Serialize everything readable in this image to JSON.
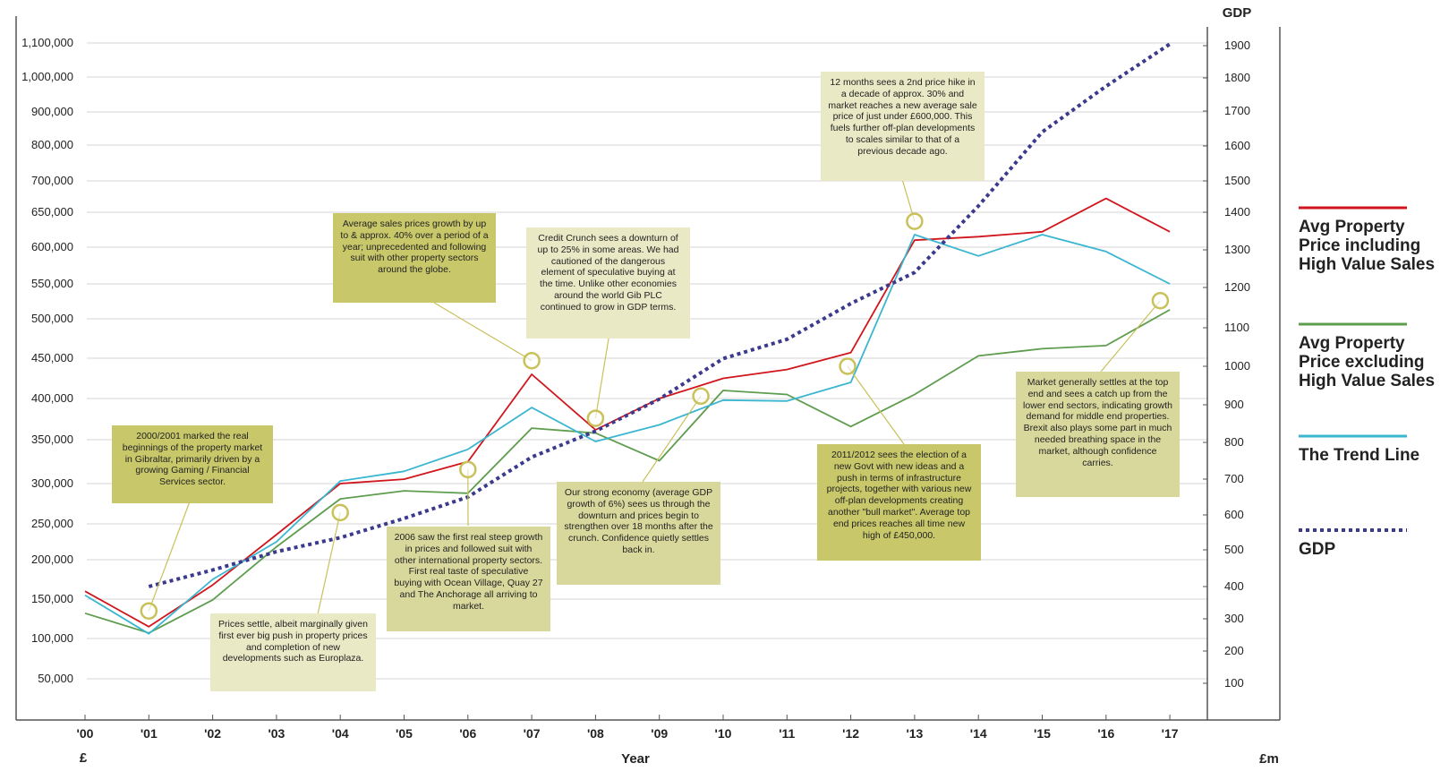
{
  "chart_data": {
    "type": "line",
    "xlabel": "Year",
    "ylabel_left": "£",
    "ylabel_right_top": "GDP",
    "ylabel_right_bottom": "£m",
    "x_categories": [
      "'00",
      "'01",
      "'02",
      "'03",
      "'04",
      "'05",
      "'06",
      "'07",
      "'08",
      "'09",
      "'10",
      "'11",
      "'12",
      "'13",
      "'14",
      "'15",
      "'16",
      "'17"
    ],
    "left_ticks": [
      "50,000",
      "100,000",
      "150,000",
      "200,000",
      "250,000",
      "300,000",
      "350,000",
      "400,000",
      "450,000",
      "500,000",
      "550,000",
      "600,000",
      "650,000",
      "700,000",
      "800,000",
      "900,000",
      "1,000,000",
      "1,100,000"
    ],
    "right_ticks": [
      "100",
      "200",
      "300",
      "400",
      "500",
      "600",
      "700",
      "800",
      "900",
      "1000",
      "1100",
      "1200",
      "1300",
      "1400",
      "1500",
      "1600",
      "1700",
      "1800",
      "1900"
    ],
    "series": [
      {
        "name": "Avg Property Price including High Value Sales",
        "axis": "left",
        "color": "#d0161c",
        "points": [
          [
            0,
            160000
          ],
          [
            1,
            115000
          ],
          [
            2,
            168000
          ],
          [
            3,
            235000
          ],
          [
            4,
            300000
          ],
          [
            5,
            305000
          ],
          [
            6,
            325000
          ],
          [
            7,
            430000
          ],
          [
            8,
            362000
          ],
          [
            9,
            400000
          ],
          [
            10,
            425000
          ],
          [
            11,
            436000
          ],
          [
            12,
            457000
          ],
          [
            13,
            610000
          ],
          [
            14,
            615000
          ],
          [
            15,
            622000
          ],
          [
            16,
            672000
          ],
          [
            17,
            622000
          ]
        ]
      },
      {
        "name": "Avg Property Price excluding High Value Sales",
        "axis": "left",
        "color": "#5e9d4e",
        "points": [
          [
            0,
            132000
          ],
          [
            1,
            107000
          ],
          [
            2,
            149000
          ],
          [
            3,
            218000
          ],
          [
            4,
            281000
          ],
          [
            5,
            291000
          ],
          [
            6,
            288000
          ],
          [
            7,
            364000
          ],
          [
            8,
            358000
          ],
          [
            9,
            326000
          ],
          [
            10,
            410000
          ],
          [
            11,
            405000
          ],
          [
            12,
            366000
          ],
          [
            13,
            405000
          ],
          [
            14,
            453000
          ],
          [
            15,
            462000
          ],
          [
            16,
            466000
          ],
          [
            17,
            513000
          ]
        ]
      },
      {
        "name": "The Trend Line",
        "axis": "left",
        "color": "#3ab6d0",
        "points": [
          [
            0,
            155000
          ],
          [
            1,
            106000
          ],
          [
            2,
            175000
          ],
          [
            3,
            225000
          ],
          [
            4,
            303000
          ],
          [
            5,
            314000
          ],
          [
            6,
            339000
          ],
          [
            7,
            389000
          ],
          [
            8,
            348000
          ],
          [
            9,
            368000
          ],
          [
            10,
            398000
          ],
          [
            11,
            397000
          ],
          [
            12,
            420000
          ],
          [
            13,
            618000
          ],
          [
            14,
            588000
          ],
          [
            15,
            618000
          ],
          [
            16,
            594000
          ],
          [
            17,
            550000
          ]
        ]
      },
      {
        "name": "GDP",
        "axis": "right",
        "color": "#3b3a8c",
        "dashed": true,
        "points": [
          [
            1,
            400
          ],
          [
            2,
            445
          ],
          [
            3,
            495
          ],
          [
            4,
            535
          ],
          [
            5,
            590
          ],
          [
            6,
            650
          ],
          [
            7,
            760
          ],
          [
            8,
            830
          ],
          [
            9,
            915
          ],
          [
            10,
            1020
          ],
          [
            11,
            1070
          ],
          [
            12,
            1160
          ],
          [
            13,
            1240
          ],
          [
            14,
            1420
          ],
          [
            15,
            1640
          ],
          [
            16,
            1775
          ],
          [
            17,
            1905
          ]
        ]
      }
    ],
    "legend_placement": "right",
    "grid": true
  },
  "legend": [
    {
      "lines": [
        "Avg Property",
        "Price including",
        "High Value Sales"
      ],
      "color": "#d0161c",
      "dashed": false
    },
    {
      "lines": [
        "Avg Property",
        "Price excluding",
        "High Value Sales"
      ],
      "color": "#5e9d4e",
      "dashed": false
    },
    {
      "lines": [
        "The Trend Line"
      ],
      "color": "#3ab6d0",
      "dashed": false
    },
    {
      "lines": [
        "GDP"
      ],
      "color": "#3b3a8c",
      "dashed": true
    }
  ],
  "annotations": [
    {
      "text": "2000/2001 marked the real beginnings of the property market in Gibraltar, primarily driven by a growing Gaming / Financial Services sector.",
      "bg": "#c8c86a",
      "x": 1,
      "y": 135000
    },
    {
      "text": "Prices settle, albeit marginally given first ever big push in property prices and completion of new developments such as Europlaza.",
      "bg": "#e9e9c6",
      "x": 4,
      "y": 264000
    },
    {
      "text": "Average sales prices growth by up to & approx. 40% over a period of a year; unprecedented and following suit with other property sectors around the globe.",
      "bg": "#c8c86a",
      "x": 7,
      "y": 447000
    },
    {
      "text": "2006 saw the first real steep growth in prices and followed suit with other international property sectors. First real taste of speculative buying with Ocean Village, Quay 27 and The Anchorage all arriving to market.",
      "bg": "#d9d89c",
      "x": 6,
      "y": 316000
    },
    {
      "text": "Credit Crunch sees a downturn of up to 25% in some areas. We had cautioned of the dangerous element of speculative buying at the time. Unlike other economies around the world Gib PLC continued to grow in GDP terms.",
      "bg": "#e9e9c6",
      "x": 8,
      "y": 376000
    },
    {
      "text": "Our strong economy (average GDP growth of 6%) sees us through the downturn and prices begin to strengthen over 18 months after the crunch. Confidence quietly settles back in.",
      "bg": "#d9d89c",
      "x": 9.65,
      "y": 403000
    },
    {
      "text": "12 months sees a 2nd price hike in a decade of approx. 30% and market reaches a new average sale price of just under £600,000. This fuels further off-plan developments to scales similar to that of a previous decade ago.",
      "bg": "#e9e9c6",
      "x": 13,
      "y": 637000
    },
    {
      "text": "2011/2012 sees the election of a new Govt with new ideas and a push in terms of infrastructure projects, together with various new off-plan developments creating another \"bull market\". Average top end prices reaches all time new high of £450,000.",
      "bg": "#c8c86a",
      "x": 11.95,
      "y": 440000
    },
    {
      "text": "Market generally settles at the top end and sees a catch up from the lower end sectors, indicating growth demand for middle end properties. Brexit also plays some part in much needed breathing space in the market, although confidence carries.",
      "bg": "#d9d89c",
      "x": 16.85,
      "y": 526000
    }
  ]
}
